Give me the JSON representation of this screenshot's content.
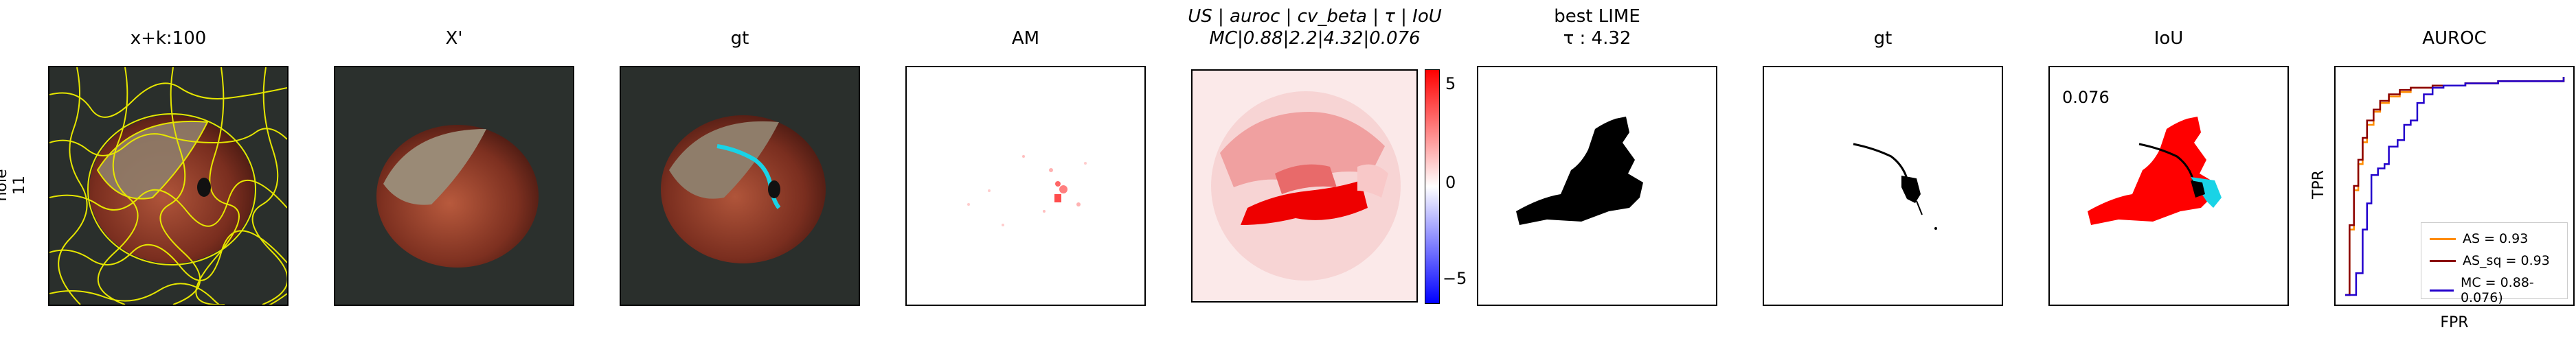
{
  "row_label": {
    "line1": "hole",
    "line2": "11"
  },
  "panels": {
    "p1": {
      "title": "x+k:100"
    },
    "p2": {
      "title": "X'"
    },
    "p3": {
      "title": "gt"
    },
    "p4": {
      "title": "AM"
    },
    "p5": {
      "title_line1": "US | auroc | cv_beta | τ | IoU",
      "title_line2": "MC|0.88|2.2|4.32|0.076"
    },
    "p6": {
      "title_line1": "best LIME",
      "title_line2": "τ : 4.32"
    },
    "p7": {
      "title": "gt"
    },
    "p8": {
      "title": "IoU",
      "annotation": "0.076"
    },
    "p9": {
      "title": "AUROC"
    }
  },
  "colorbar": {
    "ticks": [
      "5",
      "0",
      "−5"
    ],
    "range": [
      -8,
      8
    ],
    "tick_values": [
      5,
      0,
      -5
    ],
    "colors": [
      "#0000ff",
      "#ffffff",
      "#ff0000"
    ]
  },
  "chart_data": {
    "type": "line",
    "title": "AUROC",
    "xlabel": "FPR",
    "ylabel": "TPR",
    "xlim": [
      0,
      1
    ],
    "ylim": [
      0,
      1
    ],
    "legend_position": "lower-right",
    "series": [
      {
        "name": "AS = 0.93",
        "color": "#ff8c00",
        "x": [
          0,
          0.02,
          0.04,
          0.06,
          0.08,
          0.1,
          0.13,
          0.16,
          0.2,
          0.25,
          0.3,
          0.4,
          0.55,
          0.7,
          1.0
        ],
        "y": [
          0,
          0.3,
          0.48,
          0.6,
          0.7,
          0.78,
          0.84,
          0.88,
          0.91,
          0.93,
          0.95,
          0.96,
          0.97,
          0.98,
          1.0
        ]
      },
      {
        "name": "AS_sq = 0.93",
        "color": "#8b0000",
        "x": [
          0,
          0.02,
          0.04,
          0.06,
          0.08,
          0.1,
          0.13,
          0.16,
          0.2,
          0.25,
          0.3,
          0.4,
          0.55,
          0.7,
          1.0
        ],
        "y": [
          0,
          0.32,
          0.5,
          0.62,
          0.72,
          0.8,
          0.85,
          0.89,
          0.92,
          0.94,
          0.95,
          0.96,
          0.97,
          0.98,
          1.0
        ]
      },
      {
        "name": "MC = 0.88-0.076)",
        "color": "#2200cc",
        "x": [
          0,
          0.05,
          0.08,
          0.1,
          0.12,
          0.15,
          0.18,
          0.2,
          0.24,
          0.27,
          0.3,
          0.33,
          0.36,
          0.4,
          0.45,
          0.55,
          0.7,
          1.0
        ],
        "y": [
          0,
          0.1,
          0.3,
          0.42,
          0.55,
          0.58,
          0.6,
          0.68,
          0.71,
          0.78,
          0.8,
          0.88,
          0.92,
          0.95,
          0.96,
          0.97,
          0.98,
          1.0
        ]
      }
    ]
  }
}
